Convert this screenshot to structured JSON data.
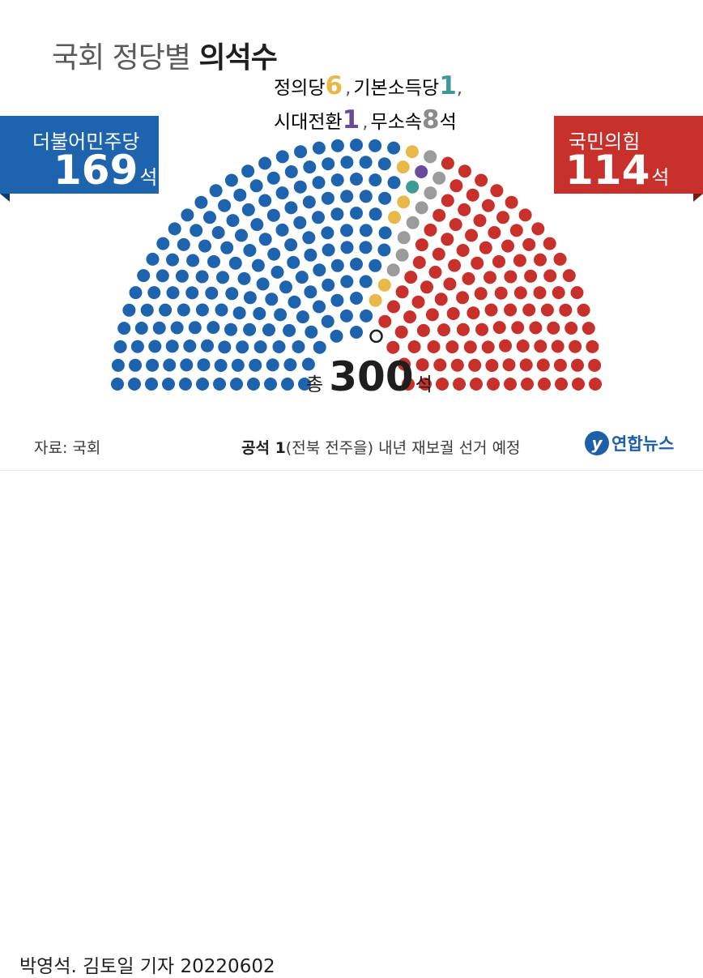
{
  "title_normal": "국회 정당별",
  "title_bold": "의석수",
  "chart_data": {
    "type": "parliament",
    "total_seats": 300,
    "series": [
      {
        "name": "더불어민주당",
        "value": 169,
        "color": "#1d63ad"
      },
      {
        "name": "정의당",
        "value": 6,
        "color": "#e8b84a"
      },
      {
        "name": "기본소득당",
        "value": 1,
        "color": "#3f9a94"
      },
      {
        "name": "시대전환",
        "value": 1,
        "color": "#6a4c9c"
      },
      {
        "name": "무소속",
        "value": 8,
        "color": "#9b9b9b"
      },
      {
        "name": "공석",
        "value": 1,
        "color": "#ffffff"
      },
      {
        "name": "국민의힘",
        "value": 114,
        "color": "#c8312b"
      }
    ]
  },
  "left_party": {
    "name": "더불어민주당",
    "count": "169",
    "unit": "석"
  },
  "right_party": {
    "name": "국민의힘",
    "count": "114",
    "unit": "석"
  },
  "minor_parties": {
    "line1": [
      {
        "name": "정의당",
        "count": "6",
        "color": "#e8b84a"
      },
      {
        "name": "기본소득당",
        "count": "1",
        "color": "#3f9a94"
      }
    ],
    "line2": [
      {
        "name": "시대전환",
        "count": "1",
        "color": "#6a4c9c"
      },
      {
        "name": "무소속",
        "count": "8",
        "color": "#8a8a8a",
        "unit": "석"
      }
    ]
  },
  "total": {
    "label": "총",
    "count": "300",
    "unit": "석"
  },
  "source": "자료: 국회",
  "note": {
    "bold": "공석 1",
    "text": "(전북 전주을) 내년 재보궐 선거 예정"
  },
  "logo": {
    "mark": "y",
    "text": "연합뉴스"
  },
  "credit": "박영석. 김토일 기자  20220602",
  "colors": {
    "blue": "#1d63ad",
    "blue_dark": "#0c3a6e",
    "red": "#c8312b",
    "red_dark": "#7a1a16"
  }
}
